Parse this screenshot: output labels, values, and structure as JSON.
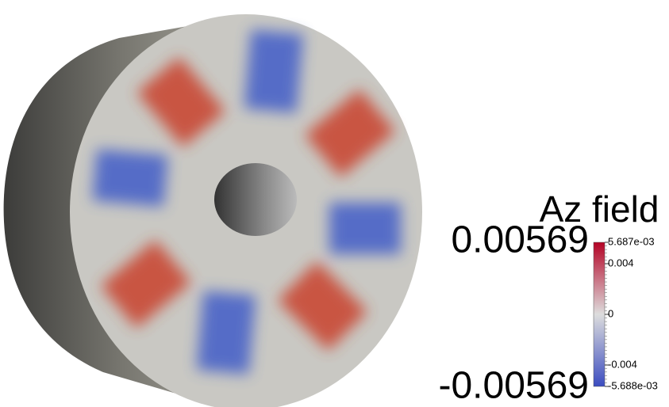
{
  "colorbar": {
    "title": "Az field",
    "max_label": "0.00569",
    "min_label": "-0.00569",
    "range": [
      {
        "value": -0.005688,
        "label": "-5.688e-03"
      },
      {
        "value": 0.005687,
        "label": "5.687e-03"
      }
    ],
    "ticks": [
      -0.004,
      0,
      0.004
    ],
    "colors": [
      "#3b4cc0",
      "#dddddd",
      "#b40426"
    ]
  }
}
